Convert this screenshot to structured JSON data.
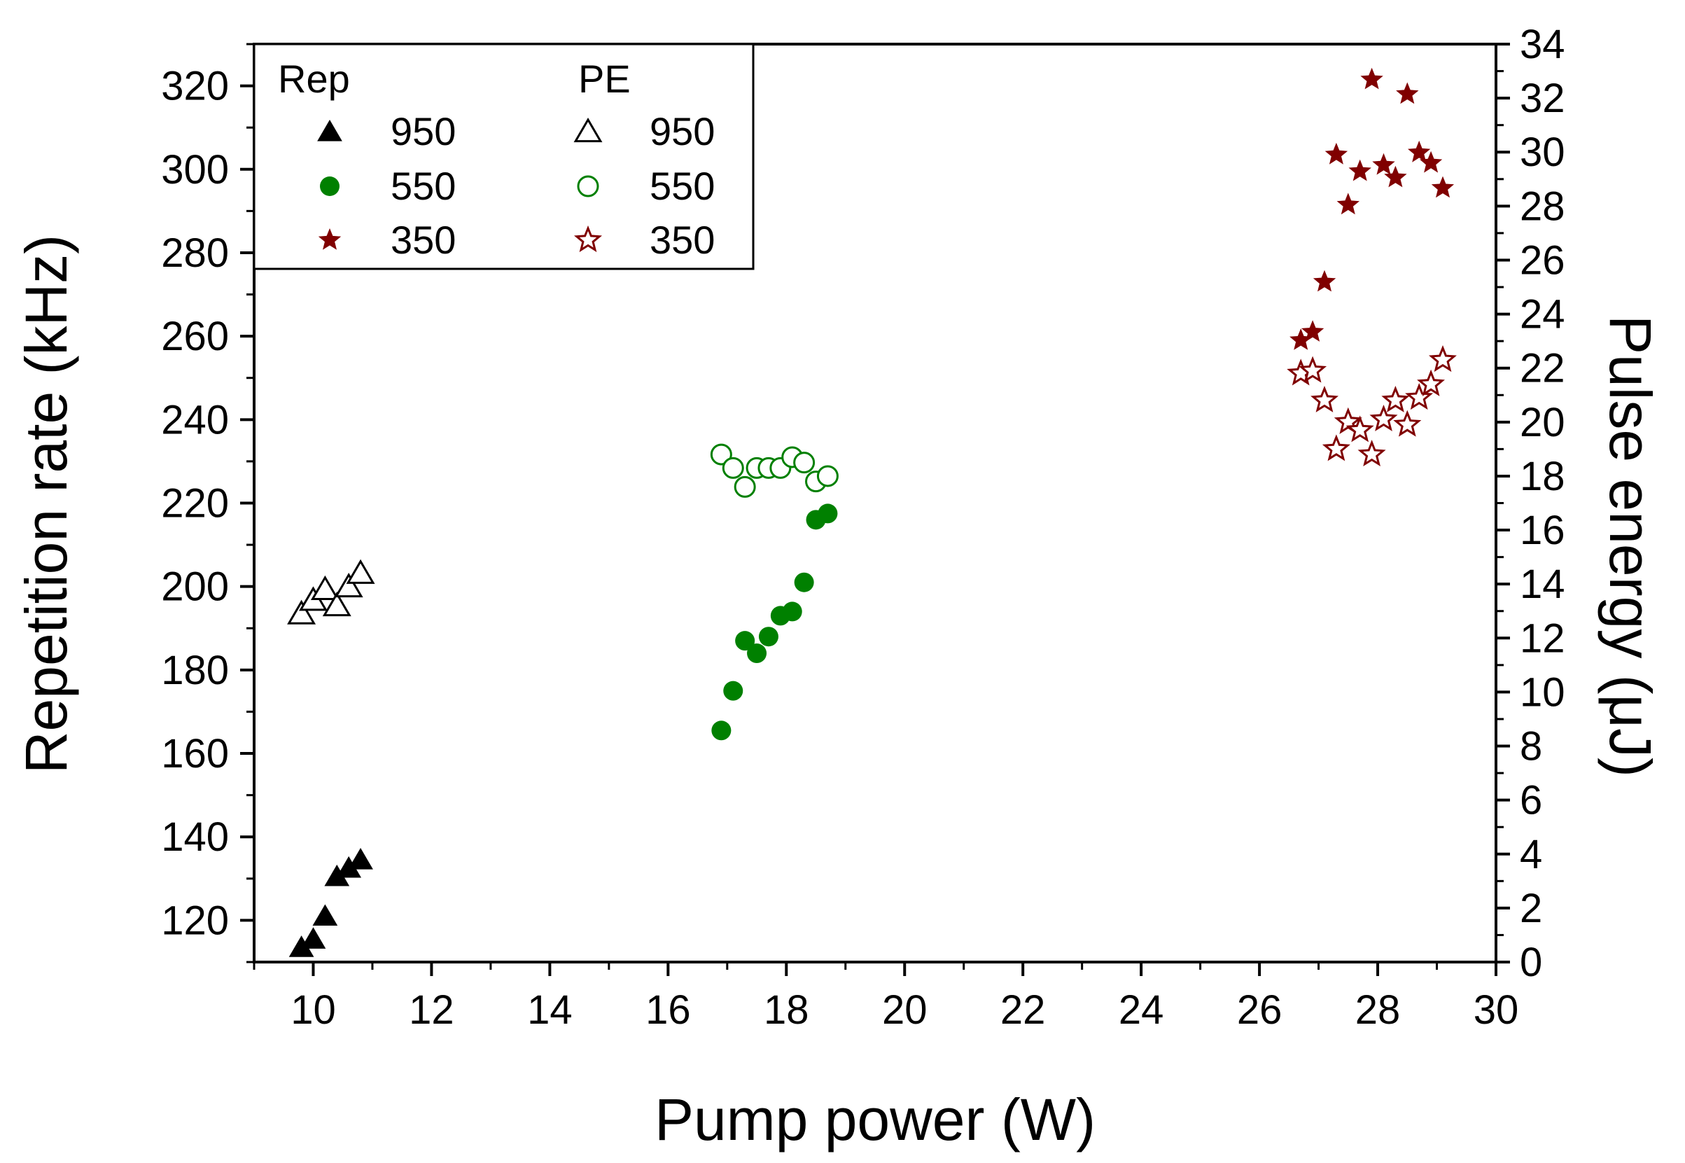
{
  "chart_data": {
    "type": "scatter",
    "xlabel": "Pump power (W)",
    "ylabel_left": "Repetition rate (kHz)",
    "ylabel_right": "Pulse energy (μJ)",
    "xlim": [
      9,
      30
    ],
    "ylim_left": [
      110,
      330
    ],
    "ylim_right": [
      0,
      34
    ],
    "x_ticks": [
      10,
      12,
      14,
      16,
      18,
      20,
      22,
      24,
      26,
      28,
      30
    ],
    "y_ticks_left": [
      120,
      140,
      160,
      180,
      200,
      220,
      240,
      260,
      280,
      300,
      320
    ],
    "y_ticks_right": [
      0,
      2,
      4,
      6,
      8,
      10,
      12,
      14,
      16,
      18,
      20,
      22,
      24,
      26,
      28,
      30,
      32,
      34
    ],
    "legend": {
      "position": "top-left",
      "group_titles": [
        "Rep",
        "PE"
      ],
      "entries": [
        {
          "series": "rep950",
          "label": "950"
        },
        {
          "series": "rep550",
          "label": "550"
        },
        {
          "series": "rep350",
          "label": "350"
        },
        {
          "series": "pe950",
          "label": "950"
        },
        {
          "series": "pe550",
          "label": "550"
        },
        {
          "series": "pe350",
          "label": "350"
        }
      ]
    },
    "series": [
      {
        "id": "rep950",
        "name": "Rep 950",
        "axis": "left",
        "marker": "triangle",
        "filled": true,
        "color": "#000000",
        "points": [
          [
            9.8,
            113.5
          ],
          [
            10.0,
            115.5
          ],
          [
            10.2,
            121
          ],
          [
            10.4,
            130.5
          ],
          [
            10.6,
            132.5
          ],
          [
            10.8,
            134.5
          ]
        ]
      },
      {
        "id": "rep550",
        "name": "Rep 550",
        "axis": "left",
        "marker": "circle",
        "filled": true,
        "color": "#008000",
        "points": [
          [
            16.9,
            165.5
          ],
          [
            17.1,
            175
          ],
          [
            17.3,
            187
          ],
          [
            17.5,
            184
          ],
          [
            17.7,
            188
          ],
          [
            17.9,
            193
          ],
          [
            18.1,
            194
          ],
          [
            18.3,
            201
          ],
          [
            18.5,
            216
          ],
          [
            18.7,
            217.5
          ]
        ]
      },
      {
        "id": "rep350",
        "name": "Rep 350",
        "axis": "left",
        "marker": "star",
        "filled": true,
        "color": "#800000",
        "points": [
          [
            26.7,
            259
          ],
          [
            26.9,
            261
          ],
          [
            27.1,
            273
          ],
          [
            27.3,
            303.5
          ],
          [
            27.5,
            291.5
          ],
          [
            27.7,
            299.5
          ],
          [
            27.9,
            321.5
          ],
          [
            28.1,
            301
          ],
          [
            28.3,
            298
          ],
          [
            28.5,
            318
          ],
          [
            28.7,
            304
          ],
          [
            28.9,
            301.5
          ],
          [
            29.1,
            295.5
          ]
        ]
      },
      {
        "id": "pe950",
        "name": "PE 950",
        "axis": "right",
        "marker": "triangle",
        "filled": false,
        "color": "#000000",
        "points": [
          [
            9.8,
            12.9
          ],
          [
            10.0,
            13.4
          ],
          [
            10.2,
            13.8
          ],
          [
            10.4,
            13.2
          ],
          [
            10.6,
            13.9
          ],
          [
            10.8,
            14.4
          ]
        ]
      },
      {
        "id": "pe550",
        "name": "PE 550",
        "axis": "right",
        "marker": "circle",
        "filled": false,
        "color": "#008000",
        "points": [
          [
            16.9,
            18.8
          ],
          [
            17.1,
            18.3
          ],
          [
            17.3,
            17.6
          ],
          [
            17.5,
            18.3
          ],
          [
            17.7,
            18.3
          ],
          [
            17.9,
            18.3
          ],
          [
            18.1,
            18.7
          ],
          [
            18.3,
            18.5
          ],
          [
            18.5,
            17.8
          ],
          [
            18.7,
            18.0
          ]
        ]
      },
      {
        "id": "pe350",
        "name": "PE 350",
        "axis": "right",
        "marker": "star",
        "filled": false,
        "color": "#800000",
        "points": [
          [
            26.7,
            21.8
          ],
          [
            26.9,
            21.9
          ],
          [
            27.1,
            20.8
          ],
          [
            27.3,
            19.0
          ],
          [
            27.5,
            20.0
          ],
          [
            27.7,
            19.7
          ],
          [
            27.9,
            18.8
          ],
          [
            28.1,
            20.1
          ],
          [
            28.3,
            20.8
          ],
          [
            28.5,
            19.9
          ],
          [
            28.7,
            20.9
          ],
          [
            28.9,
            21.4
          ],
          [
            29.1,
            22.3
          ]
        ]
      }
    ]
  }
}
